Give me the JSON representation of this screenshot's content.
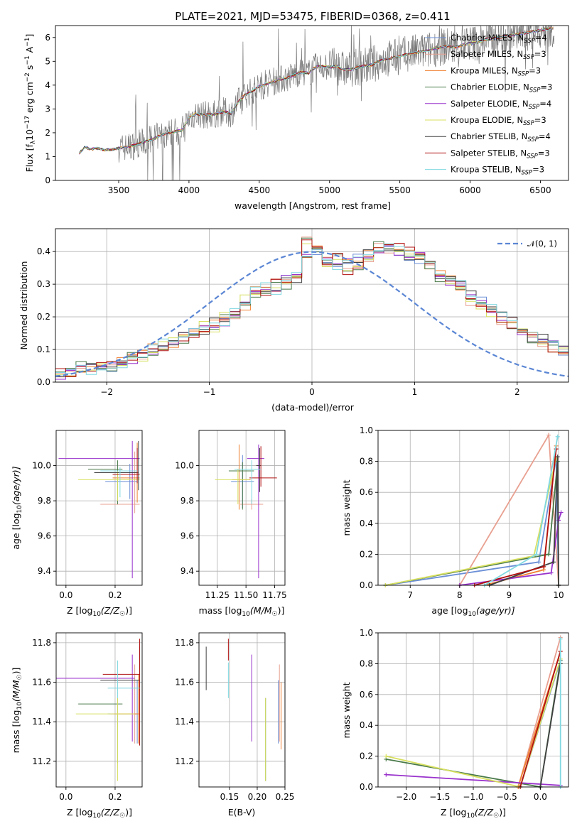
{
  "chart_data": [
    {
      "id": "spectrum",
      "type": "line",
      "title": "PLATE=2021, MJD=53475, FIBERID=0368, z=0.411",
      "xlabel": "wavelength [Angstrom, rest frame]",
      "ylabel_main": "Flux [f",
      "ylabel_sub": "λ",
      "ylabel_rest": "10",
      "ylabel_exp": "−17",
      "ylabel_units": " erg cm",
      "ylabel_exp2": "−2",
      "ylabel_units2": " s",
      "ylabel_exp3": "−1",
      "ylabel_units3": " A",
      "ylabel_exp4": "−1",
      "ylabel_end": "]",
      "xlim": [
        3050,
        6700
      ],
      "ylim": [
        0,
        6.5
      ],
      "xticks": [
        3500,
        4000,
        4500,
        5000,
        5500,
        6000,
        6500
      ],
      "yticks": [
        0,
        1,
        2,
        3,
        4,
        5,
        6
      ],
      "continuum": [
        [
          3220,
          1.15
        ],
        [
          3260,
          1.4
        ],
        [
          3300,
          1.3
        ],
        [
          3350,
          1.35
        ],
        [
          3400,
          1.28
        ],
        [
          3450,
          1.3
        ],
        [
          3500,
          1.35
        ],
        [
          3550,
          1.4
        ],
        [
          3600,
          1.45
        ],
        [
          3650,
          1.55
        ],
        [
          3700,
          1.65
        ],
        [
          3750,
          1.75
        ],
        [
          3800,
          1.9
        ],
        [
          3850,
          2.0
        ],
        [
          3900,
          2.05
        ],
        [
          3950,
          2.1
        ],
        [
          4000,
          2.6
        ],
        [
          4050,
          2.8
        ],
        [
          4100,
          2.75
        ],
        [
          4150,
          2.75
        ],
        [
          4200,
          2.8
        ],
        [
          4250,
          2.9
        ],
        [
          4300,
          2.8
        ],
        [
          4350,
          3.3
        ],
        [
          4400,
          3.6
        ],
        [
          4450,
          3.75
        ],
        [
          4500,
          3.95
        ],
        [
          4550,
          4.05
        ],
        [
          4600,
          4.15
        ],
        [
          4650,
          4.25
        ],
        [
          4700,
          4.3
        ],
        [
          4750,
          4.45
        ],
        [
          4800,
          4.55
        ],
        [
          4850,
          4.5
        ],
        [
          4900,
          4.75
        ],
        [
          4950,
          4.8
        ],
        [
          5000,
          4.75
        ],
        [
          5050,
          4.8
        ],
        [
          5100,
          4.65
        ],
        [
          5150,
          4.65
        ],
        [
          5200,
          4.75
        ],
        [
          5250,
          4.8
        ],
        [
          5300,
          4.85
        ],
        [
          5350,
          5.0
        ],
        [
          5400,
          5.1
        ],
        [
          5450,
          5.15
        ],
        [
          5500,
          5.2
        ],
        [
          5550,
          5.3
        ],
        [
          5600,
          5.35
        ],
        [
          5650,
          5.4
        ],
        [
          5700,
          5.45
        ],
        [
          5750,
          5.55
        ],
        [
          5800,
          5.6
        ],
        [
          5850,
          5.65
        ],
        [
          5900,
          5.6
        ],
        [
          5950,
          5.7
        ],
        [
          6000,
          5.75
        ],
        [
          6050,
          5.8
        ],
        [
          6100,
          5.9
        ],
        [
          6150,
          5.95
        ],
        [
          6200,
          6.0
        ],
        [
          6250,
          6.05
        ],
        [
          6300,
          6.1
        ],
        [
          6350,
          6.15
        ],
        [
          6400,
          6.2
        ],
        [
          6450,
          6.25
        ],
        [
          6500,
          6.3
        ],
        [
          6550,
          6.35
        ],
        [
          6600,
          6.4
        ]
      ],
      "legend": [
        {
          "pre": "Chabrier MILES, N",
          "sub": "SSP",
          "post": "=4",
          "color": "#6b8fd6"
        },
        {
          "pre": "Salpeter MILES, N",
          "sub": "SSP",
          "post": "=3",
          "color": "#e8a090"
        },
        {
          "pre": "Kroupa MILES, N",
          "sub": "SSP",
          "post": "=3",
          "color": "#f08030"
        },
        {
          "pre": "Chabrier ELODIE, N",
          "sub": "SSP",
          "post": "=3",
          "color": "#4a7a4a"
        },
        {
          "pre": "Salpeter ELODIE, N",
          "sub": "SSP",
          "post": "=4",
          "color": "#9932cc"
        },
        {
          "pre": "Kroupa ELODIE, N",
          "sub": "SSP",
          "post": "=3",
          "color": "#d8e060"
        },
        {
          "pre": "Chabrier STELIB, N",
          "sub": "SSP",
          "post": "=4",
          "color": "#404040"
        },
        {
          "pre": "Salpeter STELIB, N",
          "sub": "SSP",
          "post": "=3",
          "color": "#b01010"
        },
        {
          "pre": "Kroupa STELIB, N",
          "sub": "SSP",
          "post": "=3",
          "color": "#80d8e0"
        }
      ]
    },
    {
      "id": "residuals",
      "type": "histogram",
      "xlabel": "(data-model)/error",
      "ylabel": "Normed distribution",
      "xlim": [
        -2.5,
        2.5
      ],
      "ylim": [
        0,
        0.47
      ],
      "xticks": [
        -2,
        -1,
        0,
        1,
        2
      ],
      "yticks": [
        0.0,
        0.1,
        0.2,
        0.3,
        0.4
      ],
      "legend_label": "𝒩(0, 1)",
      "bin_width": 0.1,
      "series_values": [
        [
          0.025,
          0.03,
          0.045,
          0.04,
          0.05,
          0.045,
          0.06,
          0.07,
          0.09,
          0.1,
          0.115,
          0.12,
          0.14,
          0.155,
          0.16,
          0.18,
          0.185,
          0.21,
          0.23,
          0.275,
          0.29,
          0.28,
          0.31,
          0.32,
          0.39,
          0.4,
          0.37,
          0.36,
          0.37,
          0.38,
          0.39,
          0.4,
          0.41,
          0.4,
          0.39,
          0.38,
          0.36,
          0.33,
          0.31,
          0.3,
          0.27,
          0.25,
          0.23,
          0.2,
          0.19,
          0.16,
          0.14,
          0.13,
          0.11,
          0.1
        ],
        [
          0.03,
          0.035,
          0.05,
          0.045,
          0.045,
          0.05,
          0.055,
          0.075,
          0.08,
          0.095,
          0.11,
          0.125,
          0.135,
          0.15,
          0.17,
          0.17,
          0.2,
          0.2,
          0.25,
          0.27,
          0.28,
          0.3,
          0.3,
          0.33,
          0.43,
          0.41,
          0.36,
          0.38,
          0.34,
          0.36,
          0.37,
          0.42,
          0.41,
          0.41,
          0.4,
          0.39,
          0.36,
          0.32,
          0.31,
          0.28,
          0.25,
          0.24,
          0.21,
          0.19,
          0.18,
          0.15,
          0.13,
          0.12,
          0.1,
          0.09
        ]
      ],
      "normal_curve": {
        "mean": 0,
        "sigma": 1
      }
    },
    {
      "id": "age-vs-Z",
      "type": "errorbar",
      "xlabel_main": "Z [log",
      "xlabel_sub": "10",
      "xlabel_rest": "(Z/Z",
      "xlabel_sub2": "☉",
      "xlabel_end": ")]",
      "ylabel_main": "age  [log",
      "ylabel_sub": "10",
      "ylabel_rest": "(age/yr)]",
      "xlim": [
        -0.04,
        0.31
      ],
      "ylim": [
        9.32,
        10.2
      ],
      "xticks": [
        0.0,
        0.2
      ],
      "yticks": [
        9.4,
        9.6,
        9.8,
        10.0
      ]
    },
    {
      "id": "age-vs-mass",
      "type": "errorbar",
      "xlabel_main": "mass [log",
      "xlabel_sub": "10",
      "xlabel_rest": "(M/M",
      "xlabel_sub2": "☉",
      "xlabel_end": ")]",
      "xlim": [
        11.09,
        11.84
      ],
      "ylim": [
        9.32,
        10.2
      ],
      "xticks": [
        11.25,
        11.5,
        11.75
      ],
      "xticklabels": [
        "11.25",
        "11.50",
        "11.75"
      ],
      "yticks": [
        9.4,
        9.6,
        9.8,
        10.0
      ]
    },
    {
      "id": "massweight-vs-age",
      "type": "line",
      "xlabel_main": "age  [log",
      "xlabel_sub": "10",
      "xlabel_rest": "(age/yr)]",
      "ylabel": "mass weight",
      "xlim": [
        6.35,
        10.2
      ],
      "ylim": [
        0,
        1.0
      ],
      "xticks": [
        7,
        8,
        9,
        10
      ],
      "yticks": [
        0.0,
        0.2,
        0.4,
        0.6,
        0.8,
        1.0
      ]
    },
    {
      "id": "mass-vs-Z",
      "type": "errorbar",
      "xlabel_main": "Z [log",
      "xlabel_sub": "10",
      "xlabel_rest": "(Z/Z",
      "xlabel_sub2": "☉",
      "xlabel_end": ")]",
      "ylabel_main": "mass [log",
      "ylabel_sub": "10",
      "ylabel_rest": "(M/M",
      "ylabel_sub2": "☉",
      "ylabel_end": ")]",
      "xlim": [
        -0.04,
        0.31
      ],
      "ylim": [
        11.07,
        11.85
      ],
      "xticks": [
        0.0,
        0.2
      ],
      "yticks": [
        11.2,
        11.4,
        11.6,
        11.8
      ]
    },
    {
      "id": "mass-vs-EBV",
      "type": "errorbar",
      "xlabel": "E(B-V)",
      "xlim": [
        0.095,
        0.25
      ],
      "ylim": [
        11.07,
        11.85
      ],
      "xticks": [
        0.15,
        0.2,
        0.25
      ],
      "yticks": [
        11.2,
        11.4,
        11.6,
        11.8
      ]
    },
    {
      "id": "massweight-vs-Z",
      "type": "line",
      "xlabel_main": "Z [log",
      "xlabel_sub": "10",
      "xlabel_rest": "(Z/Z",
      "xlabel_sub2": "☉",
      "xlabel_end": ")]",
      "ylabel": "mass weight",
      "xlim": [
        -2.42,
        0.42
      ],
      "ylim": [
        0,
        1.0
      ],
      "xticks": [
        -2.0,
        -1.5,
        -1.0,
        -0.5,
        0.0
      ],
      "xticklabels": [
        "−2.0",
        "−1.5",
        "−1.0",
        "−0.5",
        "0.0"
      ],
      "yticks": [
        0.0,
        0.2,
        0.4,
        0.6,
        0.8,
        1.0
      ]
    }
  ]
}
